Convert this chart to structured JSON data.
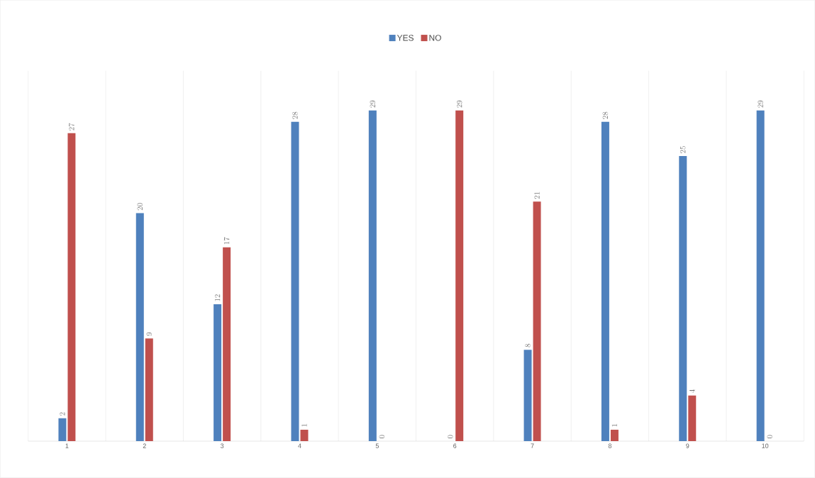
{
  "chart_data": {
    "type": "bar",
    "categories": [
      "1",
      "2",
      "3",
      "4",
      "5",
      "6",
      "7",
      "8",
      "9",
      "10"
    ],
    "series": [
      {
        "name": "YES",
        "color": "#4f81bd",
        "values": [
          2,
          20,
          12,
          28,
          29,
          0,
          8,
          28,
          25,
          29
        ]
      },
      {
        "name": "NO",
        "color": "#c0504d",
        "values": [
          27,
          9,
          17,
          1,
          0,
          29,
          21,
          1,
          4,
          0
        ]
      }
    ],
    "data_labels": true,
    "grid": "x",
    "legend": "top"
  }
}
